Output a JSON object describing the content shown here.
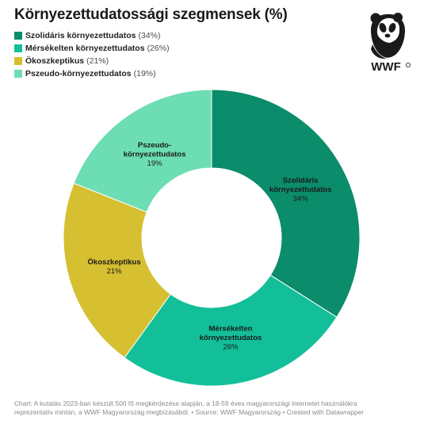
{
  "header": {
    "title": "Környezettudatossági szegmensek (%)"
  },
  "legend": {
    "items": [
      {
        "label": "Szolidáris környezettudatos",
        "pct": "(34%)",
        "color": "#0b8c6b"
      },
      {
        "label": "Mérsékelten környezettudatos",
        "pct": "(26%)",
        "color": "#12bf99"
      },
      {
        "label": "Ökoszkeptikus",
        "pct": "(21%)",
        "color": "#d6bf31"
      },
      {
        "label": "Pszeudo-környezettudatos",
        "pct": "(19%)",
        "color": "#6dddb3"
      }
    ]
  },
  "logo": {
    "text": "WWF",
    "icon": "panda-icon"
  },
  "chart_data": {
    "type": "pie",
    "donut": true,
    "title": "Környezettudatossági szegmensek (%)",
    "categories": [
      "Szolidáris környezettudatos",
      "Mérsékelten környezettudatos",
      "Ökoszkeptikus",
      "Pszeudo-környezettudatos"
    ],
    "values": [
      34,
      26,
      21,
      19
    ],
    "colors": [
      "#0b8c6b",
      "#12bf99",
      "#d6bf31",
      "#6dddb3"
    ],
    "slice_labels": [
      {
        "lines": [
          "Szolidáris",
          "környezettudatos"
        ],
        "value": "34%"
      },
      {
        "lines": [
          "Mérsékelten",
          "környezettudatos"
        ],
        "value": "26%"
      },
      {
        "lines": [
          "Ökoszkeptikus"
        ],
        "value": "21%"
      },
      {
        "lines": [
          "Pszeudo-",
          "környezettudatos"
        ],
        "value": "19%"
      }
    ],
    "start": "top",
    "direction": "clockwise"
  },
  "footer": {
    "line1": "Chart: A kutatás 2023-ban készült 500 fő megkérdezése alapján, a 18-59 éves magyarországi internetet használókra",
    "line2": "reprezentatív mintán, a WWF Magyarország megbízásából. • Source: WWF Magyarország • Created with Datawrapper"
  }
}
